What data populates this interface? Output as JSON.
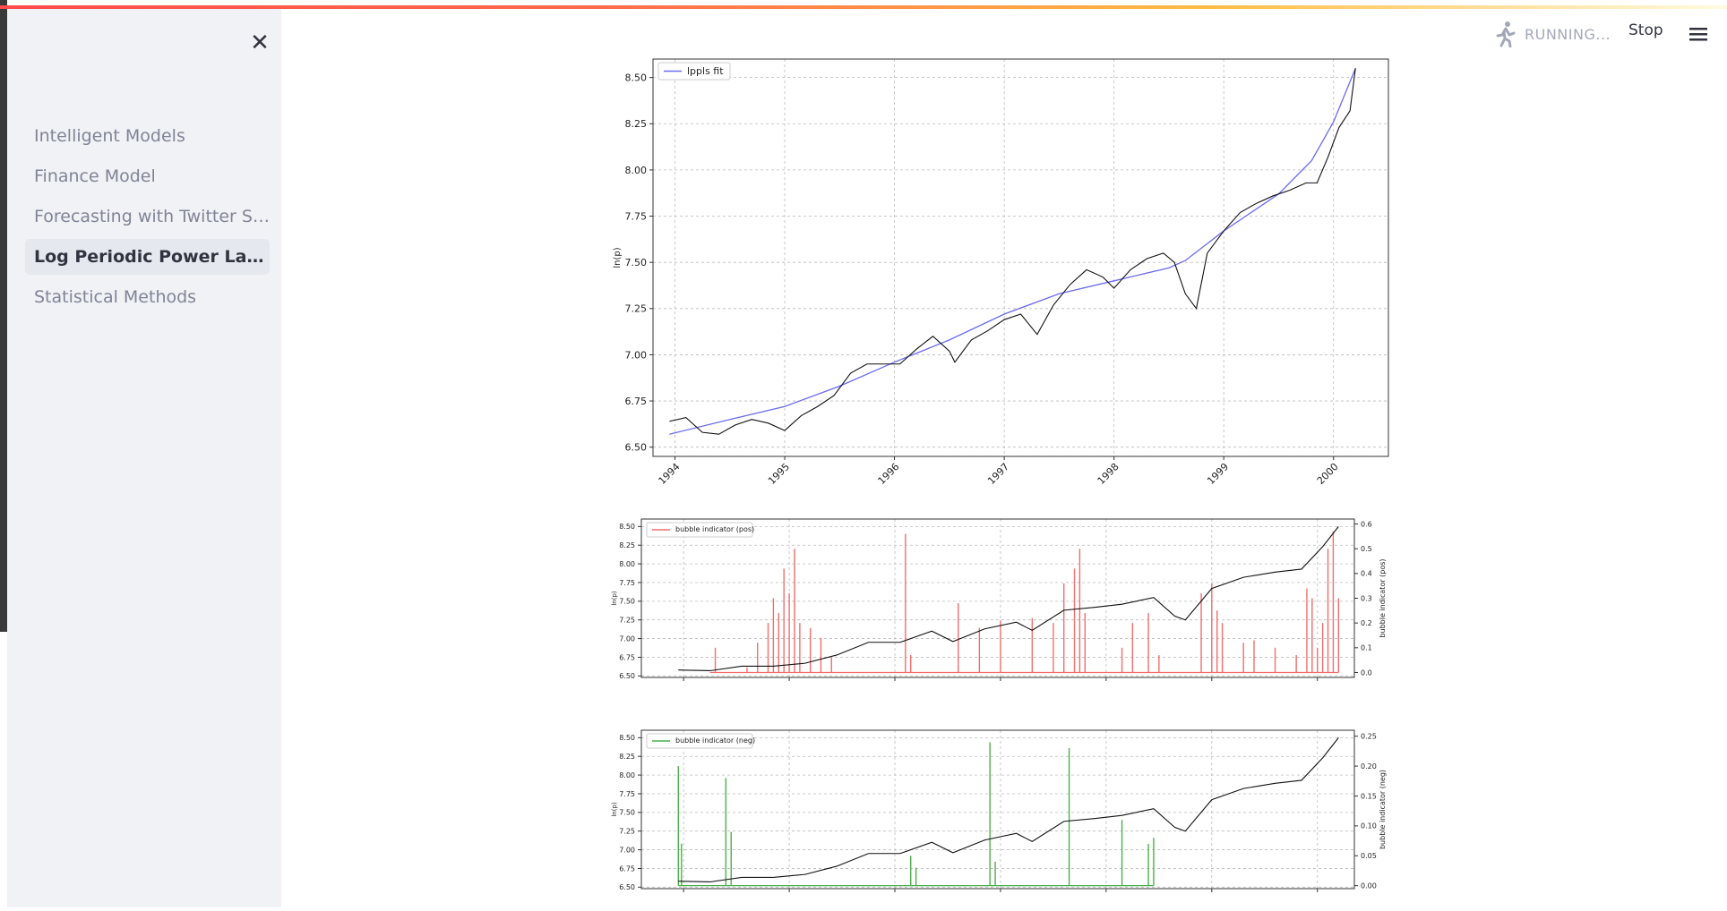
{
  "sidebar": {
    "items": [
      {
        "label": "Intelligent Models",
        "active": false
      },
      {
        "label": "Finance Model",
        "active": false
      },
      {
        "label": "Forecasting with Twitter Se...",
        "active": false
      },
      {
        "label": "Log Periodic Power Law Si...",
        "active": true
      },
      {
        "label": "Statistical Methods",
        "active": false
      }
    ],
    "close_icon": "close-icon"
  },
  "header": {
    "status_text": "RUNNING...",
    "stop_label": "Stop",
    "running_icon": "running-person-icon",
    "menu_icon": "hamburger-menu-icon"
  },
  "colors": {
    "sidebar_bg": "#f0f2f6",
    "accent": "#ff4b4b",
    "fit_line": "#6b6bf0",
    "pos_indicator": "#f26d6d",
    "neg_indicator": "#4bb04b"
  },
  "chart_data": [
    {
      "type": "line",
      "title": "",
      "ylabel": "ln(p)",
      "xlabel": "",
      "x_ticks": [
        "1994",
        "1995",
        "1996",
        "1997",
        "1998",
        "1999",
        "2000"
      ],
      "y_ticks": [
        "6.50",
        "6.75",
        "7.00",
        "7.25",
        "7.50",
        "7.75",
        "8.00",
        "8.25",
        "8.50"
      ],
      "ylim": [
        6.45,
        8.6
      ],
      "xlim": [
        1993.8,
        2000.5
      ],
      "grid": true,
      "legend_position": "top-left",
      "series": [
        {
          "name": "lppls fit",
          "color": "#6b6bf0",
          "x": [
            1993.95,
            1994.5,
            1995.0,
            1995.5,
            1996.0,
            1996.5,
            1997.0,
            1997.5,
            1998.0,
            1998.5,
            1998.65,
            1999.0,
            1999.5,
            1999.8,
            2000.0,
            2000.2
          ],
          "y": [
            6.57,
            6.65,
            6.72,
            6.83,
            6.96,
            7.08,
            7.22,
            7.33,
            7.4,
            7.47,
            7.51,
            7.67,
            7.87,
            8.05,
            8.26,
            8.55
          ]
        },
        {
          "name": "",
          "color": "#111111",
          "x": [
            1993.95,
            1994.1,
            1994.25,
            1994.4,
            1994.55,
            1994.7,
            1994.85,
            1995.0,
            1995.15,
            1995.3,
            1995.45,
            1995.6,
            1995.75,
            1995.9,
            1996.05,
            1996.2,
            1996.35,
            1996.5,
            1996.55,
            1996.7,
            1996.85,
            1997.0,
            1997.15,
            1997.3,
            1997.45,
            1997.6,
            1997.75,
            1997.9,
            1998.0,
            1998.15,
            1998.3,
            1998.45,
            1998.55,
            1998.65,
            1998.75,
            1998.85,
            1999.0,
            1999.15,
            1999.3,
            1999.45,
            1999.6,
            1999.75,
            1999.85,
            1999.95,
            2000.05,
            2000.15,
            2000.2
          ],
          "y": [
            6.64,
            6.66,
            6.58,
            6.57,
            6.62,
            6.65,
            6.63,
            6.59,
            6.67,
            6.72,
            6.78,
            6.9,
            6.95,
            6.95,
            6.95,
            7.03,
            7.1,
            7.02,
            6.96,
            7.08,
            7.13,
            7.19,
            7.22,
            7.11,
            7.27,
            7.38,
            7.46,
            7.42,
            7.36,
            7.46,
            7.52,
            7.55,
            7.5,
            7.33,
            7.25,
            7.55,
            7.67,
            7.77,
            7.82,
            7.86,
            7.89,
            7.93,
            7.93,
            8.07,
            8.23,
            8.32,
            8.55
          ]
        }
      ]
    },
    {
      "type": "line",
      "title": "",
      "ylabel": "ln(p)",
      "ylabel_right": "bubble indicator (pos)",
      "x_ticks": [],
      "y_ticks": [
        "6.50",
        "6.75",
        "7.00",
        "7.25",
        "7.50",
        "7.75",
        "8.00",
        "8.25",
        "8.50"
      ],
      "y2_ticks": [
        "0.0",
        "0.1",
        "0.2",
        "0.3",
        "0.4",
        "0.5",
        "0.6"
      ],
      "ylim": [
        6.48,
        8.6
      ],
      "y2lim": [
        -0.02,
        0.62
      ],
      "xlim": [
        1993.6,
        2000.35
      ],
      "grid": true,
      "legend_position": "top-left",
      "series": [
        {
          "name": "bubble indicator (pos)",
          "color": "#f26d6d",
          "axis": "right",
          "x": [
            1994.25,
            1994.3,
            1994.35,
            1994.6,
            1994.7,
            1994.8,
            1994.85,
            1994.9,
            1994.95,
            1995.0,
            1995.05,
            1995.1,
            1995.2,
            1995.3,
            1995.4,
            1996.1,
            1996.15,
            1996.6,
            1996.8,
            1997.0,
            1997.3,
            1997.5,
            1997.6,
            1997.7,
            1997.75,
            1997.8,
            1998.15,
            1998.25,
            1998.4,
            1998.5,
            1998.9,
            1999.0,
            1999.05,
            1999.1,
            1999.3,
            1999.4,
            1999.6,
            1999.8,
            1999.9,
            1999.95,
            2000.0,
            2000.05,
            2000.1,
            2000.15,
            2000.2
          ],
          "y": [
            0.0,
            0.1,
            0.0,
            0.02,
            0.12,
            0.2,
            0.3,
            0.24,
            0.42,
            0.32,
            0.5,
            0.2,
            0.18,
            0.14,
            0.06,
            0.56,
            0.07,
            0.28,
            0.18,
            0.21,
            0.22,
            0.2,
            0.36,
            0.42,
            0.5,
            0.24,
            0.1,
            0.2,
            0.24,
            0.07,
            0.32,
            0.36,
            0.25,
            0.2,
            0.12,
            0.13,
            0.1,
            0.07,
            0.34,
            0.3,
            0.1,
            0.2,
            0.5,
            0.57,
            0.3
          ]
        },
        {
          "name": "",
          "color": "#111111",
          "axis": "left",
          "x": [
            1993.95,
            1994.25,
            1994.55,
            1994.85,
            1995.15,
            1995.45,
            1995.75,
            1996.05,
            1996.35,
            1996.55,
            1996.85,
            1997.15,
            1997.3,
            1997.6,
            1997.9,
            1998.15,
            1998.45,
            1998.65,
            1998.75,
            1999.0,
            1999.3,
            1999.6,
            1999.85,
            2000.05,
            2000.2
          ],
          "y": [
            6.58,
            6.57,
            6.63,
            6.63,
            6.67,
            6.78,
            6.95,
            6.95,
            7.1,
            6.96,
            7.13,
            7.22,
            7.11,
            7.38,
            7.42,
            7.46,
            7.55,
            7.3,
            7.25,
            7.67,
            7.82,
            7.89,
            7.93,
            8.23,
            8.5
          ]
        }
      ]
    },
    {
      "type": "line",
      "title": "",
      "ylabel": "ln(p)",
      "ylabel_right": "bubble indicator (neg)",
      "x_ticks": [],
      "y_ticks": [
        "6.50",
        "6.75",
        "7.00",
        "7.25",
        "7.50",
        "7.75",
        "8.00",
        "8.25",
        "8.50"
      ],
      "y2_ticks": [
        "0.00",
        "0.05",
        "0.10",
        "0.15",
        "0.20",
        "0.25"
      ],
      "ylim": [
        6.48,
        8.6
      ],
      "y2lim": [
        -0.005,
        0.26
      ],
      "xlim": [
        1993.6,
        2000.35
      ],
      "grid": true,
      "legend_position": "top-left",
      "series": [
        {
          "name": "bubble indicator (neg)",
          "color": "#4bb04b",
          "axis": "right",
          "x": [
            1993.95,
            1993.98,
            1994.4,
            1994.45,
            1996.15,
            1996.2,
            1996.9,
            1996.95,
            1997.65,
            1998.15,
            1998.4,
            1998.45
          ],
          "y": [
            0.2,
            0.07,
            0.18,
            0.09,
            0.05,
            0.03,
            0.24,
            0.04,
            0.23,
            0.11,
            0.07,
            0.08
          ]
        },
        {
          "name": "",
          "color": "#111111",
          "axis": "left",
          "x": [
            1993.95,
            1994.25,
            1994.55,
            1994.85,
            1995.15,
            1995.45,
            1995.75,
            1996.05,
            1996.35,
            1996.55,
            1996.85,
            1997.15,
            1997.3,
            1997.6,
            1997.9,
            1998.15,
            1998.45,
            1998.65,
            1998.75,
            1999.0,
            1999.3,
            1999.6,
            1999.85,
            2000.05,
            2000.2
          ],
          "y": [
            6.58,
            6.57,
            6.63,
            6.63,
            6.67,
            6.78,
            6.95,
            6.95,
            7.1,
            6.96,
            7.13,
            7.22,
            7.11,
            7.38,
            7.42,
            7.46,
            7.55,
            7.3,
            7.25,
            7.67,
            7.82,
            7.89,
            7.93,
            8.23,
            8.5
          ]
        }
      ]
    }
  ]
}
